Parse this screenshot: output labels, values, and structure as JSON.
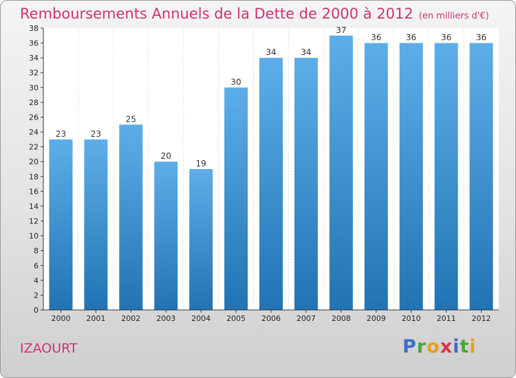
{
  "title": "Remboursements Annuels de la Dette de 2000 à 2012",
  "unit_note": "(en milliers d'€)",
  "commune": "IZAOURT",
  "logo_letters": [
    "P",
    "r",
    "o",
    "x",
    "i",
    "t",
    "i"
  ],
  "colors": {
    "title": "#cc3377",
    "bar_top": "#5daee8",
    "bar_bottom": "#2273b3",
    "grid": "#bfbfbf"
  },
  "chart_data": {
    "type": "bar",
    "title": "Remboursements Annuels de la Dette de 2000 à 2012",
    "xlabel": "",
    "ylabel": "",
    "categories": [
      "2000",
      "2001",
      "2002",
      "2003",
      "2004",
      "2005",
      "2006",
      "2007",
      "2008",
      "2009",
      "2010",
      "2011",
      "2012"
    ],
    "values": [
      23,
      23,
      25,
      20,
      19,
      30,
      34,
      34,
      37,
      36,
      36,
      36,
      36
    ],
    "ylim": [
      0,
      38
    ],
    "ytick_step": 2,
    "grid": true,
    "grid_style": "dotted-vertical",
    "show_data_labels": true
  }
}
